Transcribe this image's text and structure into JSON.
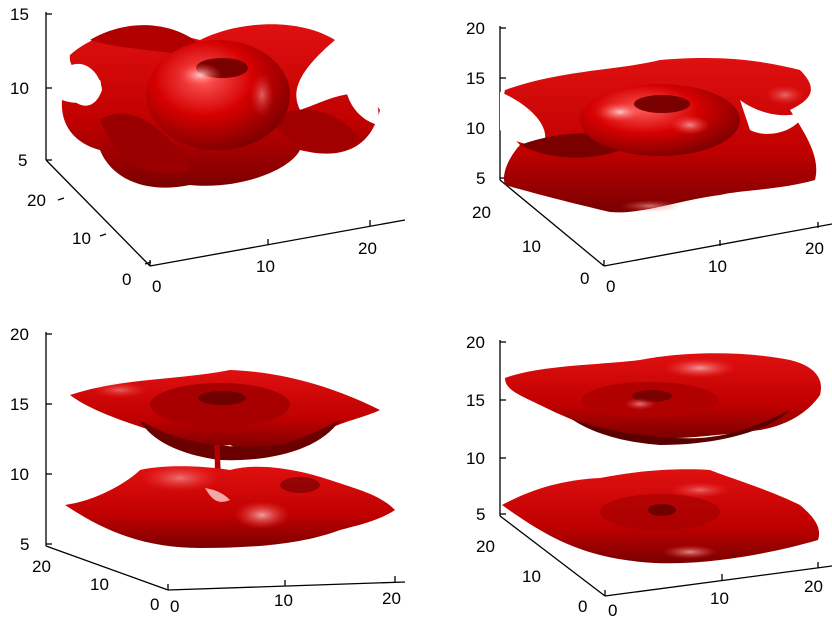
{
  "colors": {
    "surface": "#d80000",
    "surface_dark": "#6a0000",
    "surface_highlight": "#ff6a6a",
    "axis": "#000000"
  },
  "panels": [
    {
      "id": "top-left",
      "z_ticks": [
        "15",
        "10",
        "5"
      ],
      "y_ticks": [
        "20",
        "10",
        "0"
      ],
      "x_ticks": [
        "0",
        "10",
        "20"
      ],
      "surface": "torus with four saddle lobes"
    },
    {
      "id": "top-right",
      "z_ticks": [
        "20",
        "15",
        "10",
        "5"
      ],
      "y_ticks": [
        "20",
        "10",
        "0"
      ],
      "x_ticks": [
        "0",
        "10",
        "20"
      ],
      "surface": "torus on wavy sheet"
    },
    {
      "id": "bottom-left",
      "z_ticks": [
        "20",
        "15",
        "10",
        "5"
      ],
      "y_ticks": [
        "20",
        "10",
        "0"
      ],
      "x_ticks": [
        "0",
        "10",
        "20"
      ],
      "surface": "two sheets joined by a thin neck"
    },
    {
      "id": "bottom-right",
      "z_ticks": [
        "20",
        "15",
        "10",
        "5"
      ],
      "y_ticks": [
        "20",
        "10",
        "0"
      ],
      "x_ticks": [
        "0",
        "10",
        "20"
      ],
      "surface": "two separated sheets"
    }
  ]
}
